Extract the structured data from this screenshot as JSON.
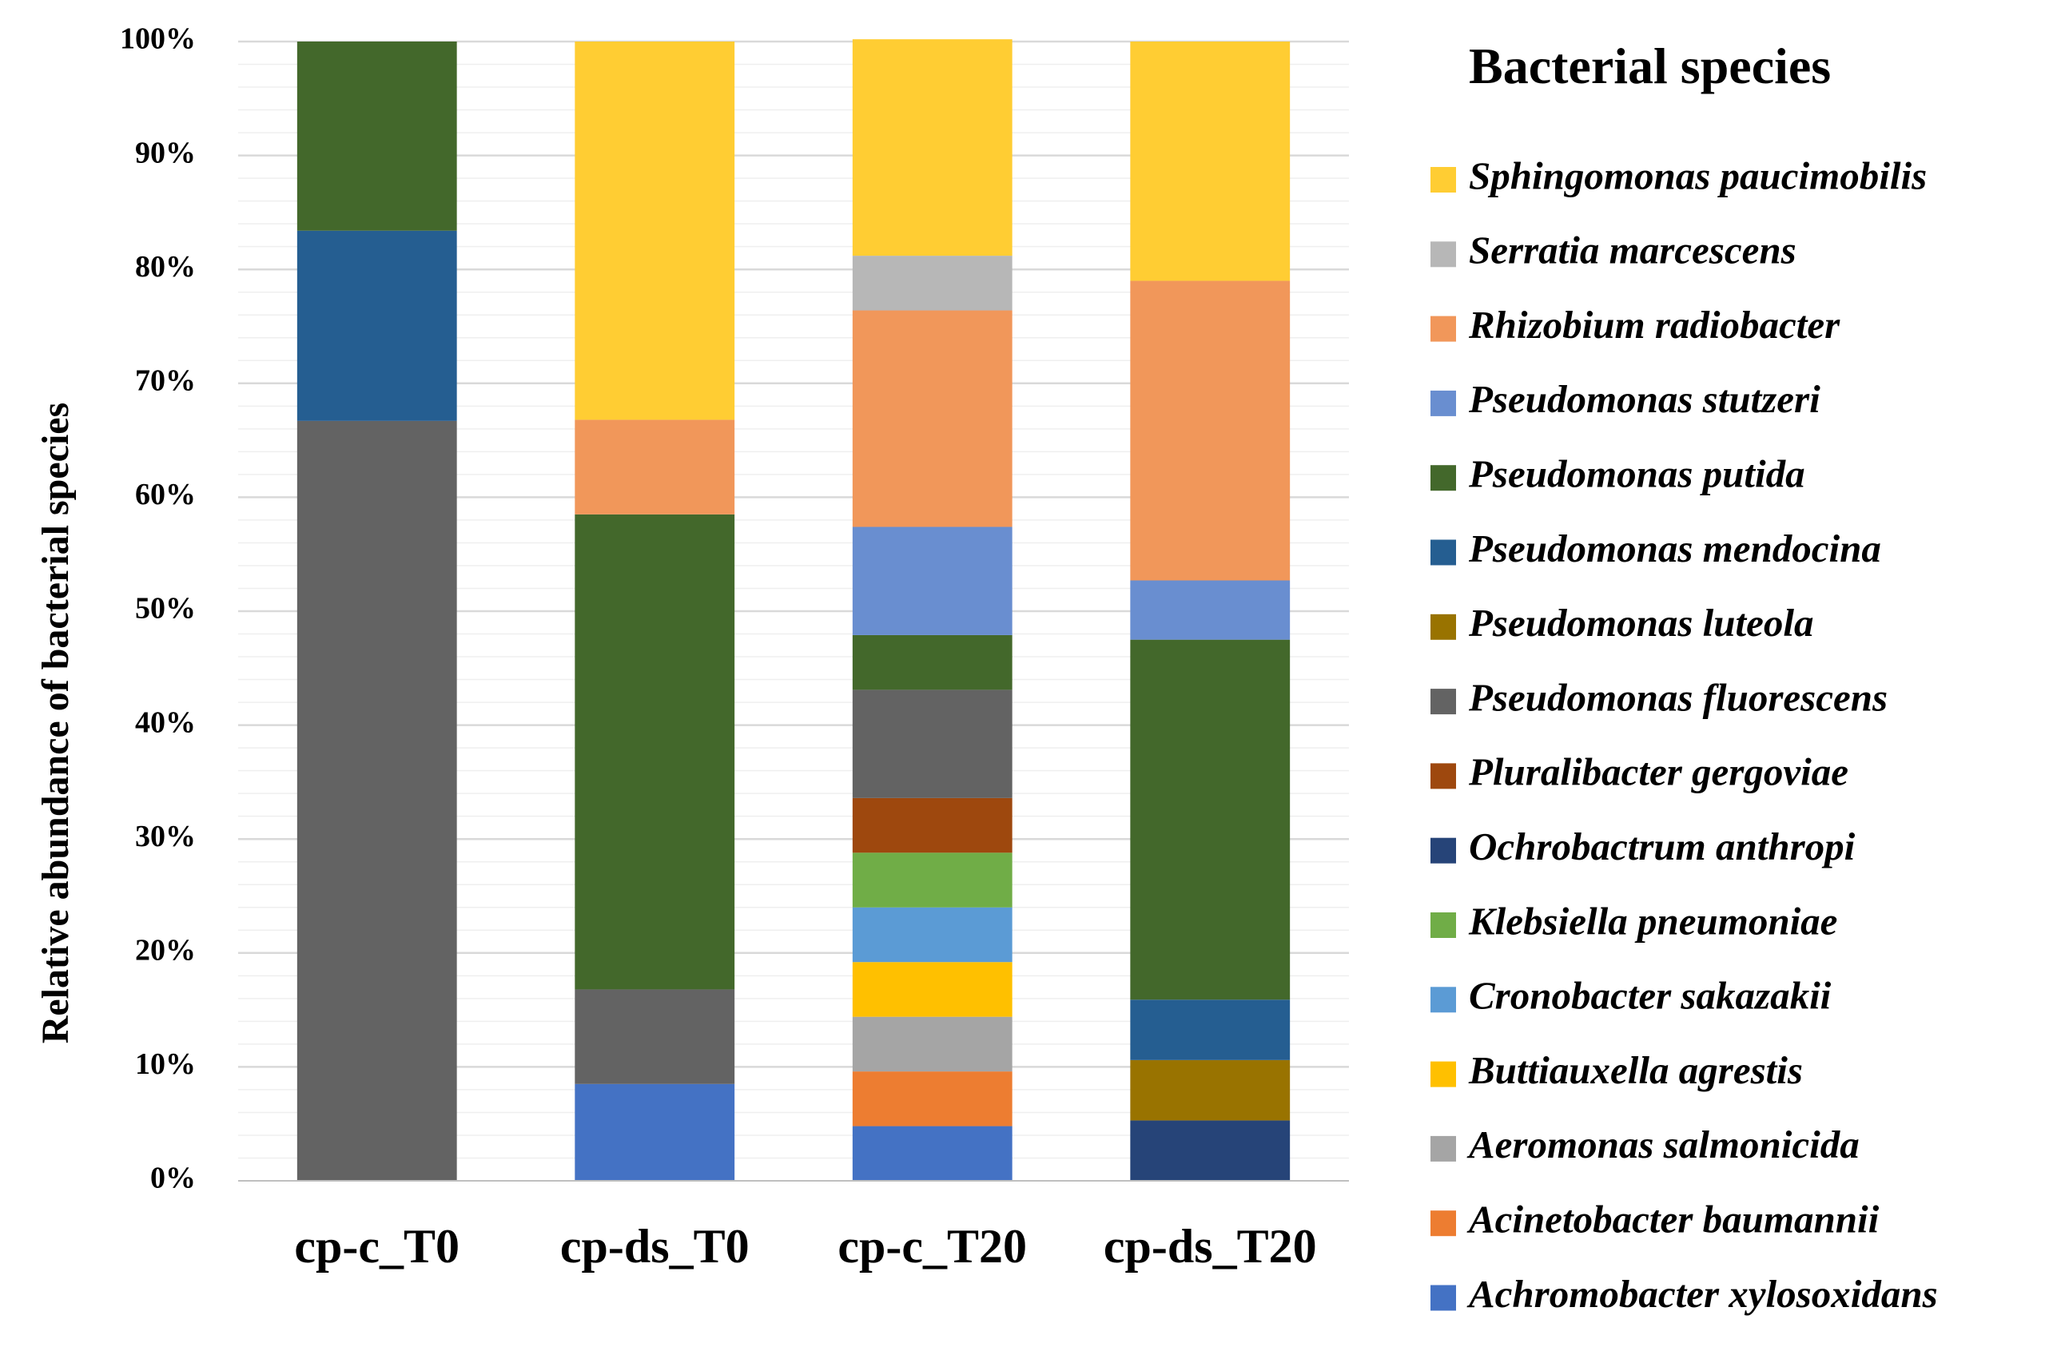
{
  "chart_data": {
    "type": "bar",
    "stacked": true,
    "normalized": true,
    "title": "",
    "xlabel": "",
    "ylabel": "Relative abundance of bacterial species",
    "ylim": [
      0,
      100
    ],
    "yticks": [
      "0%",
      "10%",
      "20%",
      "30%",
      "40%",
      "50%",
      "60%",
      "70%",
      "80%",
      "90%",
      "100%"
    ],
    "categories": [
      "cp-c_T0",
      "cp-ds_T0",
      "cp-c_T20",
      "cp-ds_T20"
    ],
    "legend_title": "Bacterial species",
    "legend_position": "right",
    "series": [
      {
        "name": "Achromobacter xylosoxidans",
        "color": "#4472C4",
        "values": [
          0,
          8.5,
          4.8,
          0
        ]
      },
      {
        "name": "Acinetobacter baumannii",
        "color": "#ED7D31",
        "values": [
          0,
          0,
          4.8,
          0
        ]
      },
      {
        "name": "Aeromonas salmonicida",
        "color": "#A5A5A5",
        "values": [
          0,
          0,
          4.8,
          0
        ]
      },
      {
        "name": "Buttiauxella agrestis",
        "color": "#FFC000",
        "values": [
          0,
          0,
          4.8,
          0
        ]
      },
      {
        "name": "Cronobacter sakazakii",
        "color": "#5B9BD5",
        "values": [
          0,
          0,
          4.8,
          0
        ]
      },
      {
        "name": "Klebsiella pneumoniae",
        "color": "#70AD47",
        "values": [
          0,
          0,
          4.8,
          0
        ]
      },
      {
        "name": "Ochrobactrum anthropi",
        "color": "#264478",
        "values": [
          0,
          0,
          0,
          5.3
        ]
      },
      {
        "name": "Pluralibacter gergoviae",
        "color": "#9E480E",
        "values": [
          0,
          0,
          4.8,
          0
        ]
      },
      {
        "name": "Pseudomonas fluorescens",
        "color": "#636363",
        "values": [
          66.7,
          8.3,
          9.5,
          0
        ]
      },
      {
        "name": "Pseudomonas luteola",
        "color": "#997300",
        "values": [
          0,
          0,
          0,
          5.3
        ]
      },
      {
        "name": "Pseudomonas mendocina",
        "color": "#255E91",
        "values": [
          16.7,
          0,
          0,
          5.3
        ]
      },
      {
        "name": "Pseudomonas putida",
        "color": "#43682B",
        "values": [
          16.6,
          41.7,
          4.8,
          31.6
        ]
      },
      {
        "name": "Pseudomonas stutzeri",
        "color": "#698ED0",
        "values": [
          0,
          0,
          9.5,
          5.2
        ]
      },
      {
        "name": "Rhizobium radiobacter",
        "color": "#F1975A",
        "values": [
          0,
          8.3,
          19.0,
          26.3
        ]
      },
      {
        "name": "Serratia marcescens",
        "color": "#B7B7B7",
        "values": [
          0,
          0,
          4.8,
          0
        ]
      },
      {
        "name": "Sphingomonas paucimobilis",
        "color": "#FFCD33",
        "values": [
          0,
          33.2,
          19.0,
          21.0
        ]
      }
    ]
  }
}
